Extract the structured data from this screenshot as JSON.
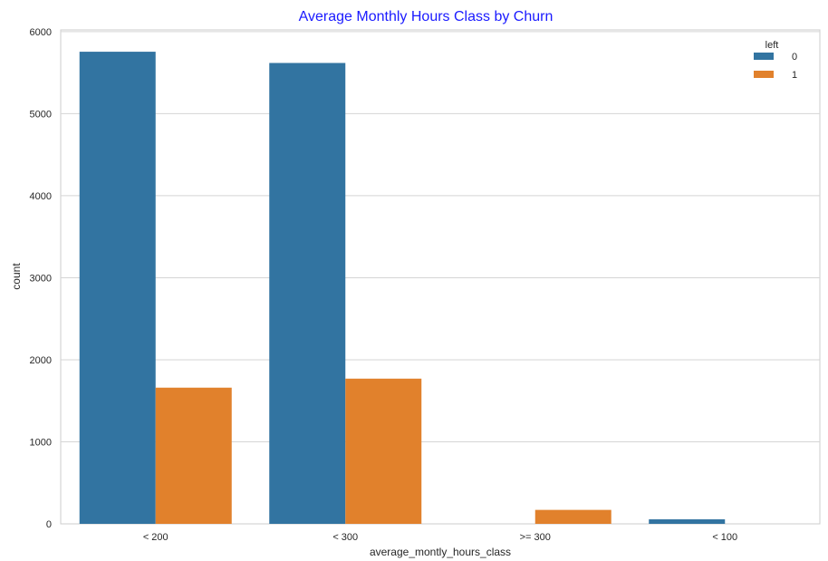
{
  "chart_data": {
    "type": "bar",
    "title": "Average Monthly Hours Class by Churn",
    "xlabel": "average_montly_hours_class",
    "ylabel": "count",
    "categories": [
      "< 200",
      "< 300",
      ">= 300",
      "< 100"
    ],
    "series": [
      {
        "name": "0",
        "values": [
          5755,
          5618,
          0,
          55
        ]
      },
      {
        "name": "1",
        "values": [
          1660,
          1770,
          170,
          0
        ]
      }
    ],
    "ylim": [
      0,
      6000
    ],
    "yticks": [
      0,
      1000,
      2000,
      3000,
      4000,
      5000,
      6000
    ],
    "legend": {
      "title": "left",
      "position": "top-right"
    },
    "grid": "horizontal",
    "colors": {
      "series_0": "#3274a1",
      "series_1": "#e1812c",
      "title": "#1a1aff"
    }
  }
}
